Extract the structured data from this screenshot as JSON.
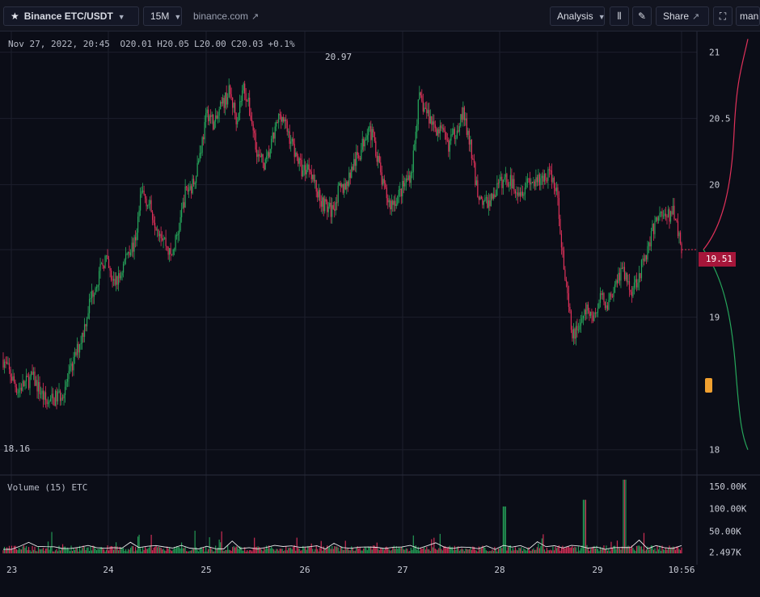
{
  "toolbar": {
    "symbol": "Binance ETC/USDT",
    "interval": "15M",
    "source": "binance.com",
    "analysis": "Analysis",
    "share": "Share",
    "user": "manu"
  },
  "legend": {
    "date": "Nov 27, 2022, 20:45",
    "open": "O20.01",
    "high": "H20.05",
    "low": "L20.00",
    "close": "C20.03",
    "change": "+0.1%"
  },
  "volume_label": "Volume (15) ETC",
  "last_price": "19.51",
  "colors": {
    "up": "#26a65b",
    "down": "#e0315a",
    "background": "#0b0d17",
    "badge": "#a6163a",
    "ma_line": "#e8e8e8"
  },
  "chart_data": {
    "type": "candlestick",
    "interval": "15M",
    "x_labels": [
      "23",
      "24",
      "25",
      "26",
      "27",
      "28",
      "29",
      "10:56"
    ],
    "y_ticks": [
      "21",
      "20.5",
      "20",
      "19.51",
      "19",
      "18"
    ],
    "y_range": [
      17.98,
      21.15
    ],
    "annotations": {
      "high_label": "20.97",
      "low_label": "18.16"
    },
    "close_path": [
      [
        0,
        18.68
      ],
      [
        2,
        18.45
      ],
      [
        4,
        18.55
      ],
      [
        6,
        18.35
      ],
      [
        8,
        18.42
      ],
      [
        9,
        18.55
      ],
      [
        11,
        18.9
      ],
      [
        12,
        19.15
      ],
      [
        14,
        19.45
      ],
      [
        15,
        19.25
      ],
      [
        16,
        19.3
      ],
      [
        17,
        19.5
      ],
      [
        18,
        19.55
      ],
      [
        19,
        19.95
      ],
      [
        20,
        19.85
      ],
      [
        21,
        19.7
      ],
      [
        22,
        19.6
      ],
      [
        23,
        19.45
      ],
      [
        24,
        19.65
      ],
      [
        25,
        19.95
      ],
      [
        26,
        20.0
      ],
      [
        27,
        20.25
      ],
      [
        28,
        20.55
      ],
      [
        29,
        20.45
      ],
      [
        30,
        20.6
      ],
      [
        31,
        20.7
      ],
      [
        32,
        20.5
      ],
      [
        33,
        20.75
      ],
      [
        34,
        20.5
      ],
      [
        35,
        20.2
      ],
      [
        36,
        20.15
      ],
      [
        37,
        20.35
      ],
      [
        38,
        20.55
      ],
      [
        39,
        20.4
      ],
      [
        40,
        20.25
      ],
      [
        41,
        20.1
      ],
      [
        42,
        20.15
      ],
      [
        43,
        19.95
      ],
      [
        44,
        19.85
      ],
      [
        45,
        19.8
      ],
      [
        46,
        19.95
      ],
      [
        47,
        20.0
      ],
      [
        48,
        20.15
      ],
      [
        49,
        20.25
      ],
      [
        50,
        20.45
      ],
      [
        51,
        20.3
      ],
      [
        52,
        20.0
      ],
      [
        53,
        19.85
      ],
      [
        54,
        19.9
      ],
      [
        55,
        20.0
      ],
      [
        56,
        20.1
      ],
      [
        57,
        20.65
      ],
      [
        58,
        20.55
      ],
      [
        59,
        20.45
      ],
      [
        60,
        20.4
      ],
      [
        61,
        20.3
      ],
      [
        62,
        20.4
      ],
      [
        63,
        20.55
      ],
      [
        64,
        20.3
      ],
      [
        65,
        19.95
      ],
      [
        66,
        19.85
      ],
      [
        67,
        19.9
      ],
      [
        68,
        20.0
      ],
      [
        69,
        20.05
      ],
      [
        70,
        20.0
      ],
      [
        71,
        19.95
      ],
      [
        72,
        20.05
      ],
      [
        73,
        20.0
      ],
      [
        74,
        20.05
      ],
      [
        75,
        20.1
      ],
      [
        76,
        19.9
      ],
      [
        77,
        19.3
      ],
      [
        78,
        18.85
      ],
      [
        79,
        18.95
      ],
      [
        80,
        19.05
      ],
      [
        81,
        19.0
      ],
      [
        82,
        19.15
      ],
      [
        83,
        19.1
      ],
      [
        84,
        19.3
      ],
      [
        85,
        19.35
      ],
      [
        86,
        19.2
      ],
      [
        87,
        19.3
      ],
      [
        88,
        19.45
      ],
      [
        89,
        19.65
      ],
      [
        90,
        19.8
      ],
      [
        91,
        19.75
      ],
      [
        92,
        19.8
      ],
      [
        93,
        19.51
      ]
    ],
    "volume_ticks": [
      "150.00K",
      "100.00K",
      "50.00K",
      "2.497K"
    ],
    "volume_max": 170000,
    "orderbook_depth": {
      "bids_color": "#26a65b",
      "asks_color": "#e0315a"
    }
  }
}
